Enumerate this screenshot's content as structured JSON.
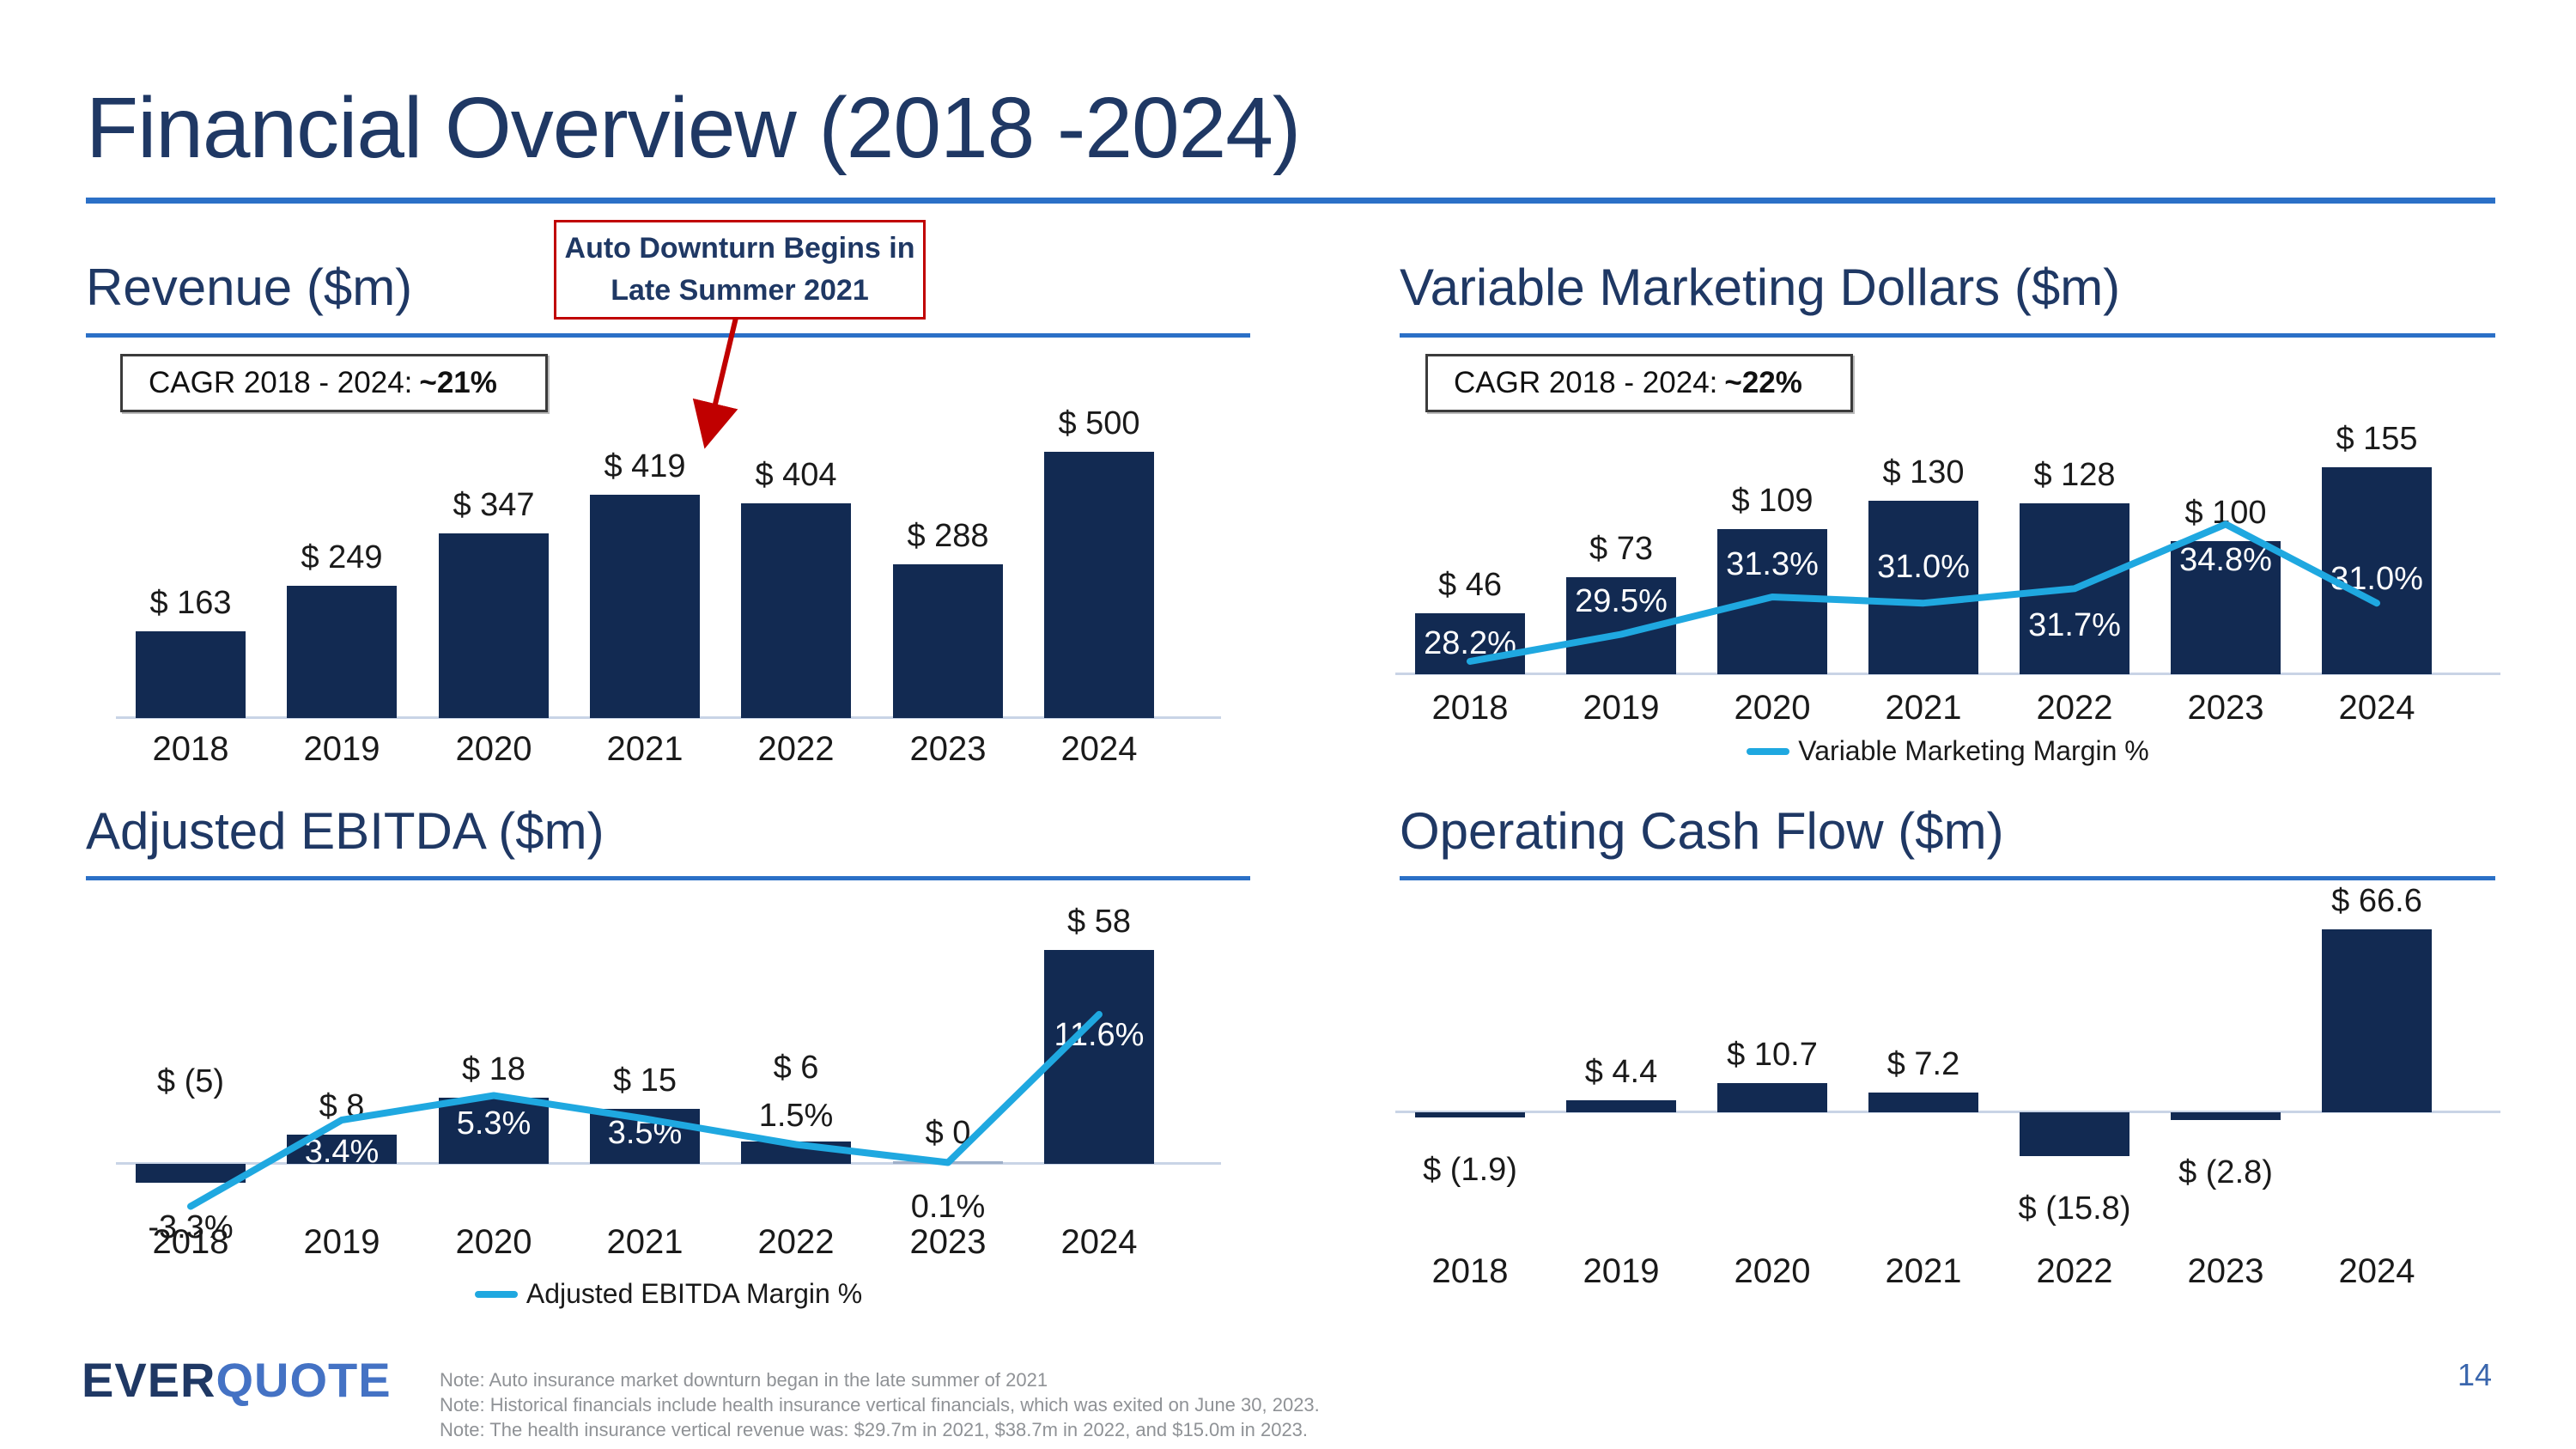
{
  "slide": {
    "title": "Financial Overview (2018 -2024)",
    "page_number": "14",
    "callout": {
      "line1": "Auto Downturn Begins in",
      "line2": "Late Summer 2021"
    },
    "logo": {
      "part1": "EVER",
      "part2": "QUOTE"
    },
    "notes": [
      "Note: Auto insurance market downturn began in the late summer of 2021",
      "Note: Historical financials include health insurance vertical financials, which was exited on June 30, 2023.",
      "Note: The health insurance vertical revenue was: $29.7m in 2021, $38.7m in 2022, and $15.0m in 2023."
    ],
    "colors": {
      "bar_navy": "#122A52",
      "heading_navy": "#1F3864",
      "divider_blue": "#2B70C7",
      "line_cyan": "#1FA8E0",
      "callout_red": "#C00000",
      "notes_gray": "#8F9296",
      "logo_quote_blue": "#4472C4"
    }
  },
  "chart_data": [
    {
      "type": "bar",
      "title": "Revenue ($m)",
      "cagr_prefix": "CAGR 2018 - 2024:",
      "cagr_value": "~21%",
      "categories": [
        "2018",
        "2019",
        "2020",
        "2021",
        "2022",
        "2023",
        "2024"
      ],
      "values": [
        163,
        249,
        347,
        419,
        404,
        288,
        500
      ],
      "bar_labels": [
        "$ 163",
        "$ 249",
        "$ 347",
        "$ 419",
        "$ 404",
        "$ 288",
        "$ 500"
      ],
      "xlabel": "",
      "ylabel": "Revenue ($m)",
      "ylim": [
        0,
        500
      ],
      "grid": false,
      "annotation": "Auto Downturn Begins in Late Summer 2021"
    },
    {
      "type": "bar",
      "title": "Variable Marketing Dollars ($m)",
      "cagr_prefix": "CAGR 2018 - 2024:",
      "cagr_value": "~22%",
      "categories": [
        "2018",
        "2019",
        "2020",
        "2021",
        "2022",
        "2023",
        "2024"
      ],
      "values": [
        46,
        73,
        109,
        130,
        128,
        100,
        155
      ],
      "bar_labels": [
        "$ 46",
        "$ 73",
        "$ 109",
        "$ 130",
        "$ 128",
        "$ 100",
        "$ 155"
      ],
      "series": [
        {
          "name": "Variable Marketing Margin %",
          "type": "line",
          "values": [
            28.2,
            29.5,
            31.3,
            31.0,
            31.7,
            34.8,
            31.0
          ],
          "labels": [
            "28.2%",
            "29.5%",
            "31.3%",
            "31.0%",
            "31.7%",
            "34.8%",
            "31.0%"
          ]
        }
      ],
      "legend": "Variable Marketing Margin %",
      "legend_position": "bottom",
      "xlabel": "",
      "ylabel": "Variable Marketing Dollars ($m)",
      "ylim": [
        0,
        155
      ],
      "grid": false
    },
    {
      "type": "bar",
      "title": "Adjusted EBITDA ($m)",
      "categories": [
        "2018",
        "2019",
        "2020",
        "2021",
        "2022",
        "2023",
        "2024"
      ],
      "values": [
        -5,
        8,
        18,
        15,
        6,
        0,
        58
      ],
      "bar_labels": [
        "$ (5)",
        "$ 8",
        "$ 18",
        "$ 15",
        "$ 6",
        "$ 0",
        "$ 58"
      ],
      "series": [
        {
          "name": "Adjusted EBITDA Margin %",
          "type": "line",
          "values": [
            -3.3,
            3.4,
            5.3,
            3.5,
            1.5,
            0.1,
            11.6
          ],
          "labels": [
            "-3.3%",
            "3.4%",
            "5.3%",
            "3.5%",
            "1.5%",
            "0.1%",
            "11.6%"
          ]
        }
      ],
      "legend": "Adjusted EBITDA Margin %",
      "legend_position": "bottom",
      "xlabel": "",
      "ylabel": "Adjusted EBITDA ($m)",
      "ylim": [
        -5,
        58
      ],
      "grid": false
    },
    {
      "type": "bar",
      "title": "Operating Cash Flow ($m)",
      "categories": [
        "2018",
        "2019",
        "2020",
        "2021",
        "2022",
        "2023",
        "2024"
      ],
      "values": [
        -1.9,
        4.4,
        10.7,
        7.2,
        -15.8,
        -2.8,
        66.6
      ],
      "bar_labels": [
        "$ (1.9)",
        "$ 4.4",
        "$ 10.7",
        "$ 7.2",
        "$ (15.8)",
        "$ (2.8)",
        "$ 66.6"
      ],
      "xlabel": "",
      "ylabel": "Operating Cash Flow ($m)",
      "ylim": [
        -15.8,
        66.6
      ],
      "grid": false
    }
  ]
}
